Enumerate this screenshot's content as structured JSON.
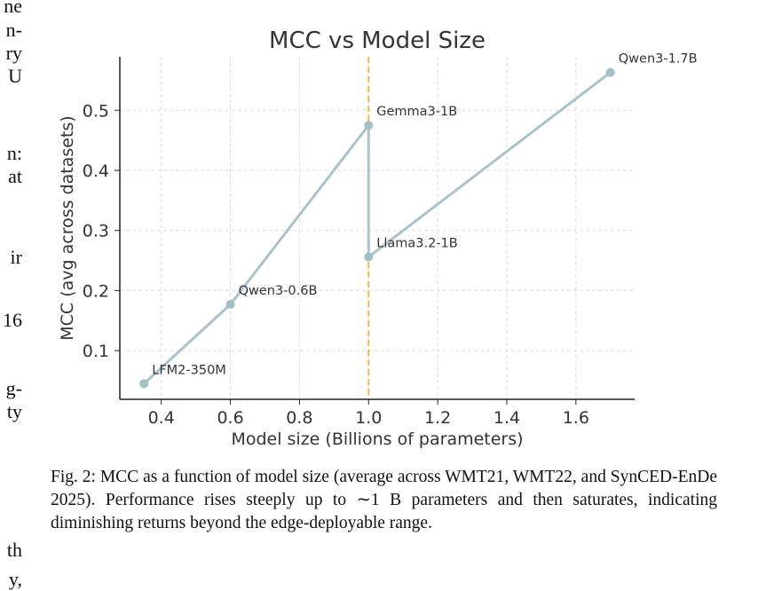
{
  "left_column_fragments": [
    "ne",
    "n-",
    "ry",
    "U",
    "n:",
    "at",
    "ir",
    "16",
    "g-",
    "ty",
    "th",
    "y,"
  ],
  "figure": {
    "caption": "Fig. 2: MCC as a function of model size (average across WMT21, WMT22, and SynCED-EnDe 2025). Performance rises steeply up to ∼1 B parameters and then saturates, indicating diminishing returns beyond the edge-deployable range."
  },
  "chart_data": {
    "type": "line",
    "title": "MCC vs Model Size",
    "xlabel": "Model size (Billions of parameters)",
    "ylabel": "MCC (avg across datasets)",
    "xlim": [
      0.28,
      1.77
    ],
    "ylim": [
      0.019,
      0.589
    ],
    "xticks": [
      "0.4",
      "0.6",
      "0.8",
      "1.0",
      "1.2",
      "1.4",
      "1.6"
    ],
    "yticks": [
      "0.1",
      "0.2",
      "0.3",
      "0.4",
      "0.5"
    ],
    "grid": true,
    "points": [
      {
        "label": "LFM2-350M",
        "x": 0.35,
        "y": 0.045
      },
      {
        "label": "Qwen3-0.6B",
        "x": 0.6,
        "y": 0.177
      },
      {
        "label": "Gemma3-1B",
        "x": 1.0,
        "y": 0.475
      },
      {
        "label": "Llama3.2-1B",
        "x": 1.0,
        "y": 0.256
      },
      {
        "label": "Qwen3-1.7B",
        "x": 1.7,
        "y": 0.563
      }
    ],
    "reference_line": {
      "x": 1.0,
      "style": "dashed",
      "color": "#f2b64a"
    },
    "line_color": "#a9c3cb",
    "marker_color": "#a3bfc4"
  }
}
